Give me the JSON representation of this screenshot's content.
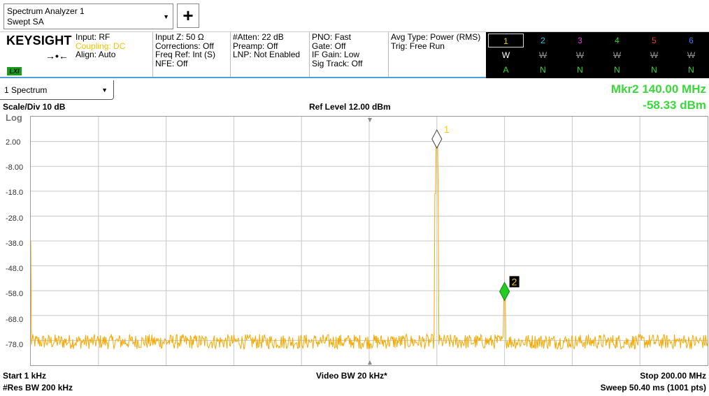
{
  "mode_tab": {
    "line1": "Spectrum Analyzer 1",
    "line2": "Swept SA"
  },
  "add_button": "+",
  "header": {
    "logo": "KEYSIGHT",
    "lxi": "LXI",
    "col1": [
      "Input: RF",
      "Coupling: DC",
      "Align: Auto"
    ],
    "col2": [
      "Input Z: 50 Ω",
      "Corrections: Off",
      "Freq Ref: Int (S)",
      "NFE: Off"
    ],
    "col3": [
      "#Atten: 22 dB",
      "Preamp: Off",
      "LNP: Not Enabled"
    ],
    "col4": [
      "PNO: Fast",
      "Gate: Off",
      "IF Gain: Low",
      "Sig Track: Off"
    ],
    "col5": [
      "Avg Type: Power (RMS)",
      "Trig: Free Run"
    ]
  },
  "traces": {
    "numbers": [
      "1",
      "2",
      "3",
      "4",
      "5",
      "6"
    ],
    "types": [
      "W",
      "W",
      "W",
      "W",
      "W",
      "W"
    ],
    "dets": [
      "A",
      "N",
      "N",
      "N",
      "N",
      "N"
    ],
    "colors": [
      "#f2d000",
      "#22c8e8",
      "#e23ae2",
      "#34d834",
      "#e83838",
      "#3a7ef0"
    ]
  },
  "window_select": "1 Spectrum",
  "marker_readout": {
    "label": "Mkr2  140.00 MHz",
    "value": "-58.33 dBm"
  },
  "scale_div": "Scale/Div 10 dB",
  "ref_level": "Ref Level 12.00 dBm",
  "log_label": "Log",
  "y_ticks": [
    "2.00",
    "-8.00",
    "-18.0",
    "-28.0",
    "-38.0",
    "-48.0",
    "-58.0",
    "-68.0",
    "-78.0"
  ],
  "footer": {
    "start": "Start 1 kHz",
    "res_bw": "#Res BW 200 kHz",
    "video_bw": "Video BW 20 kHz*",
    "stop": "Stop 200.00 MHz",
    "sweep": "Sweep 50.40 ms (1001 pts)"
  },
  "chart_data": {
    "type": "line",
    "x_unit": "MHz",
    "y_unit": "dBm",
    "xlim": [
      0.001,
      200.0
    ],
    "ylim": [
      -88,
      12
    ],
    "noise_floor_dbm": -78.5,
    "peaks": [
      {
        "x": 120.0,
        "y": 3.0
      },
      {
        "x": 140.0,
        "y": -58.33
      }
    ],
    "markers": [
      {
        "label": "1",
        "x": 120.0,
        "y": 3.0,
        "color": "#ffffff"
      },
      {
        "label": "2",
        "x": 140.0,
        "y": -58.33,
        "color": "#22cc22"
      }
    ],
    "trace_color": "#f5a800"
  }
}
